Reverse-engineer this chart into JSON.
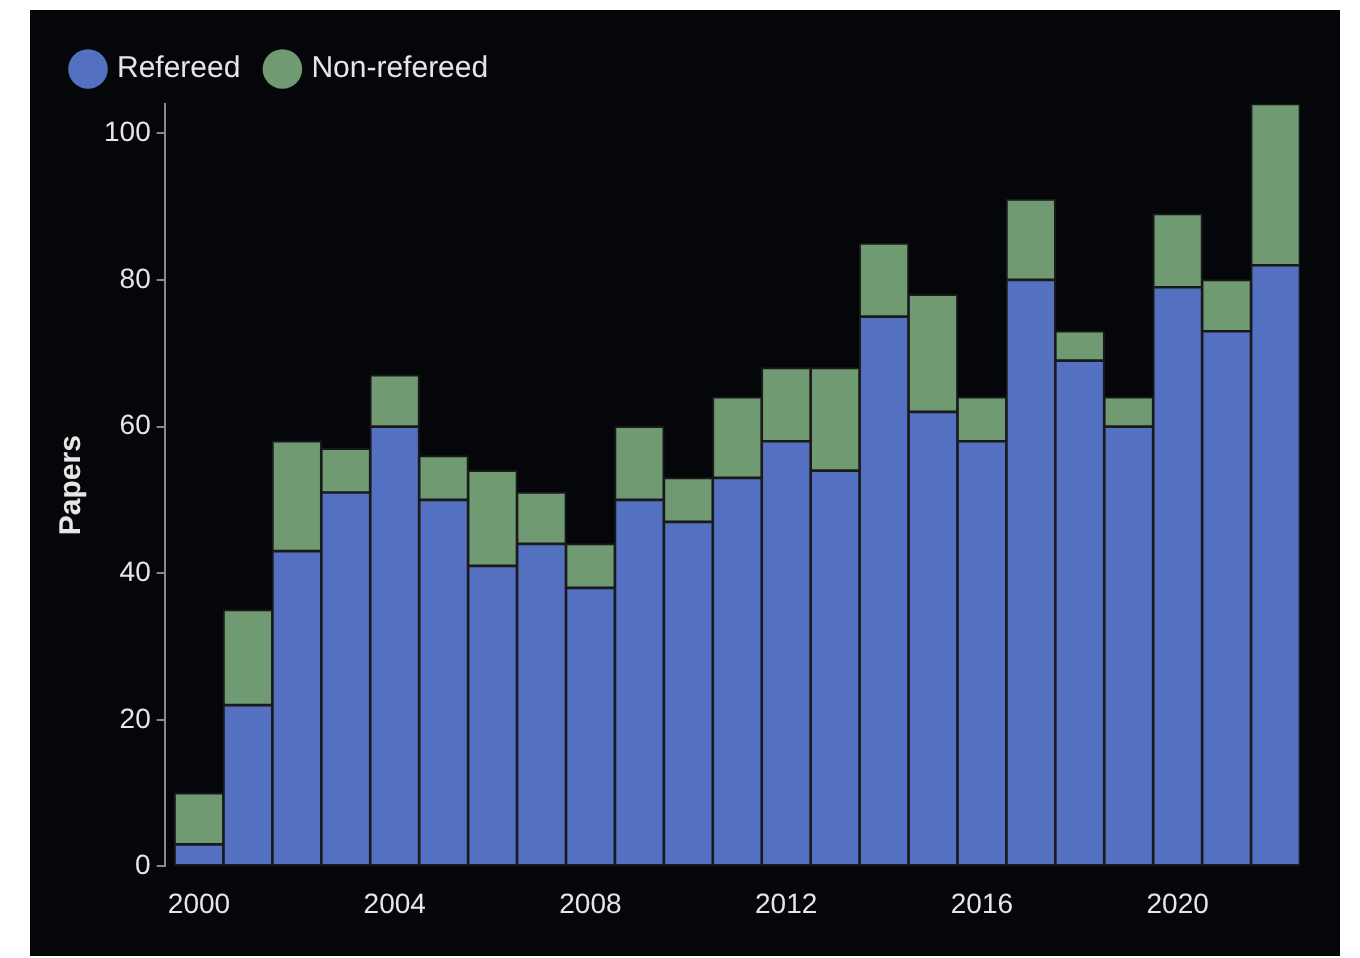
{
  "chart_data": {
    "type": "bar",
    "stacked": true,
    "ylabel": "Papers",
    "x": [
      2000,
      2001,
      2002,
      2003,
      2004,
      2005,
      2006,
      2007,
      2008,
      2009,
      2010,
      2011,
      2012,
      2013,
      2014,
      2015,
      2016,
      2017,
      2018,
      2019,
      2020,
      2021,
      2022
    ],
    "series": [
      {
        "name": "Refereed",
        "color": "#5470c0",
        "values": [
          3,
          22,
          43,
          51,
          60,
          50,
          41,
          44,
          38,
          50,
          47,
          53,
          58,
          54,
          75,
          62,
          58,
          80,
          69,
          60,
          79,
          73,
          82
        ]
      },
      {
        "name": "Non-refereed",
        "color": "#6f9a72",
        "values": [
          7,
          13,
          15,
          6,
          7,
          6,
          13,
          7,
          6,
          10,
          6,
          11,
          10,
          14,
          10,
          16,
          6,
          11,
          4,
          4,
          10,
          7,
          22
        ]
      }
    ],
    "xlim": [
      1999.3,
      2022.5
    ],
    "xticks": [
      2000,
      2004,
      2008,
      2012,
      2016,
      2020
    ],
    "ylim": [
      0,
      104
    ],
    "yticks": [
      0,
      20,
      40,
      60,
      80,
      100
    ],
    "grid": false,
    "legend": "top left"
  }
}
